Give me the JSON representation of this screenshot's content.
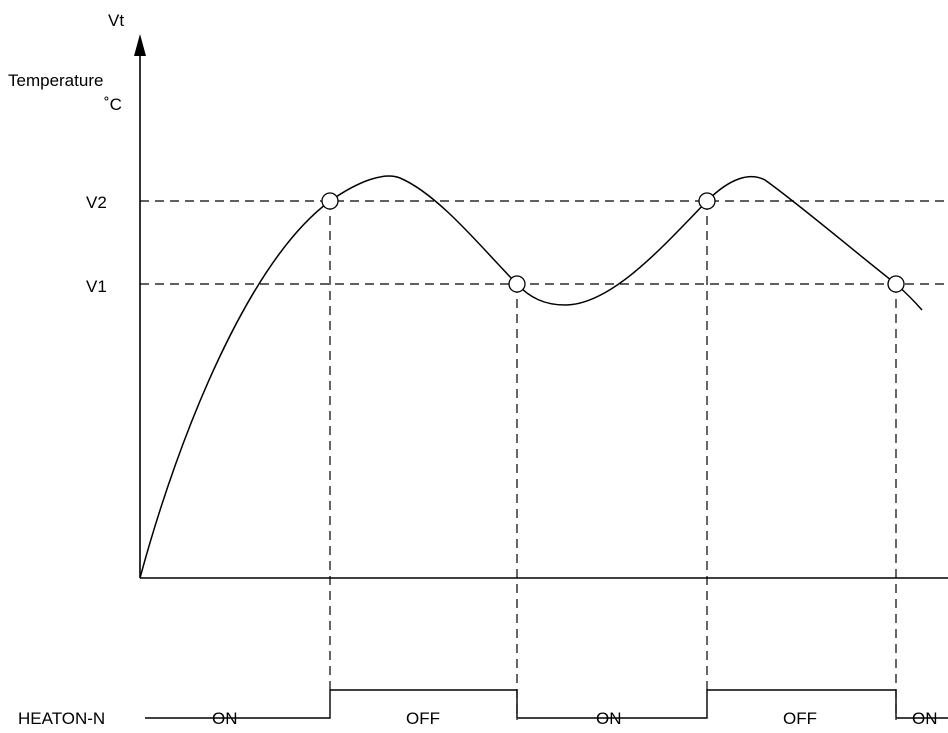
{
  "y_axis": {
    "symbol": "Vt",
    "name": "Temperature",
    "unit": "˚C"
  },
  "thresholds": [
    {
      "label": "V2"
    },
    {
      "label": "V1"
    }
  ],
  "signal": {
    "name": "HEATON-N",
    "states": [
      "ON",
      "OFF",
      "ON",
      "OFF",
      "ON"
    ]
  }
}
